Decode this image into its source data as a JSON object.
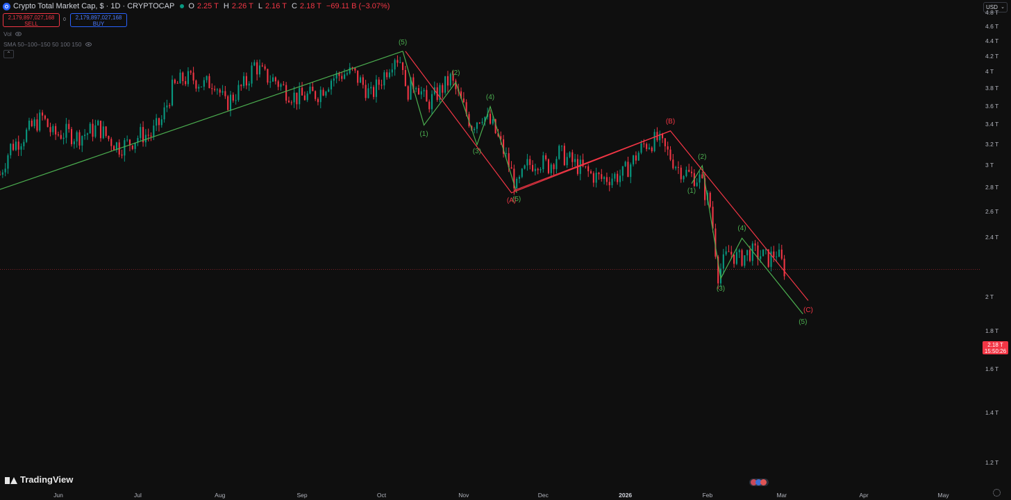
{
  "header": {
    "title": "Crypto Total Market Cap, $ · 1D · CRYPTOCAP",
    "ohlc": [
      {
        "key": "O",
        "value": "2.25 T"
      },
      {
        "key": "H",
        "value": "2.26 T"
      },
      {
        "key": "L",
        "value": "2.16 T"
      },
      {
        "key": "C",
        "value": "2.18 T"
      }
    ],
    "change": "−69.11 B (−3.07%)",
    "sell_price": "2,179,897,027,168",
    "sell_label": "SELL",
    "buy_price": "2,179,897,027,168",
    "buy_label": "BUY",
    "spread": "0"
  },
  "indicators": {
    "vol_label": "Vol",
    "sma_label": "SMA 50–100–150 50 100 150"
  },
  "currency": "USD",
  "y_axis": [
    "4.8 T",
    "4.6 T",
    "4.4 T",
    "4.2 T",
    "4 T",
    "3.8 T",
    "3.6 T",
    "3.4 T",
    "3.2 T",
    "3 T",
    "2.8 T",
    "2.6 T",
    "2.4 T",
    "2 T",
    "1.8 T",
    "1.6 T",
    "1.4 T",
    "1.2 T"
  ],
  "x_axis": [
    "Jun",
    "Jul",
    "Aug",
    "Sep",
    "Oct",
    "Nov",
    "Dec",
    "2026",
    "Feb",
    "Mar",
    "Apr",
    "May"
  ],
  "current_price": {
    "value": "2.18 T",
    "countdown": "15:50:26"
  },
  "brand": "TradingView",
  "colors": {
    "up": "#089981",
    "down": "#f23645",
    "wave_green": "#4caf50",
    "wave_red": "#f23645",
    "background": "#0f0f0f"
  },
  "chart_data": {
    "type": "candlestick",
    "price_scale": "log",
    "ylim": [
      1.12,
      5.0
    ],
    "x_range": [
      "2025-05-10",
      "2026-05-15"
    ],
    "series": {
      "close_path": [
        [
          "2025-05-10",
          2.92
        ],
        [
          "2025-05-14",
          3.18
        ],
        [
          "2025-05-18",
          3.26
        ],
        [
          "2025-05-22",
          3.38
        ],
        [
          "2025-05-26",
          3.48
        ],
        [
          "2025-05-30",
          3.3
        ],
        [
          "2025-06-04",
          3.32
        ],
        [
          "2025-06-08",
          3.28
        ],
        [
          "2025-06-12",
          3.32
        ],
        [
          "2025-06-16",
          3.38
        ],
        [
          "2025-06-20",
          3.26
        ],
        [
          "2025-06-24",
          3.18
        ],
        [
          "2025-06-28",
          3.22
        ],
        [
          "2025-07-02",
          3.3
        ],
        [
          "2025-07-06",
          3.3
        ],
        [
          "2025-07-10",
          3.45
        ],
        [
          "2025-07-14",
          3.8
        ],
        [
          "2025-07-18",
          3.92
        ],
        [
          "2025-07-22",
          3.92
        ],
        [
          "2025-07-26",
          3.85
        ],
        [
          "2025-07-30",
          3.9
        ],
        [
          "2025-08-03",
          3.62
        ],
        [
          "2025-08-07",
          3.75
        ],
        [
          "2025-08-11",
          3.88
        ],
        [
          "2025-08-14",
          4.1
        ],
        [
          "2025-08-18",
          3.95
        ],
        [
          "2025-08-22",
          3.9
        ],
        [
          "2025-08-26",
          3.78
        ],
        [
          "2025-08-30",
          3.7
        ],
        [
          "2025-09-03",
          3.72
        ],
        [
          "2025-09-07",
          3.75
        ],
        [
          "2025-09-12",
          3.92
        ],
        [
          "2025-09-16",
          3.98
        ],
        [
          "2025-09-20",
          4.0
        ],
        [
          "2025-09-24",
          3.85
        ],
        [
          "2025-09-27",
          3.72
        ],
        [
          "2025-10-01",
          3.92
        ],
        [
          "2025-10-04",
          4.1
        ],
        [
          "2025-10-06",
          4.22
        ],
        [
          "2025-10-09",
          4.12
        ],
        [
          "2025-10-10",
          3.75
        ],
        [
          "2025-10-14",
          3.9
        ],
        [
          "2025-10-18",
          3.62
        ],
        [
          "2025-10-23",
          3.78
        ],
        [
          "2025-10-27",
          3.92
        ],
        [
          "2025-10-31",
          3.65
        ],
        [
          "2025-11-04",
          3.4
        ],
        [
          "2025-11-08",
          3.52
        ],
        [
          "2025-11-12",
          3.38
        ],
        [
          "2025-11-16",
          3.14
        ],
        [
          "2025-11-21",
          2.8
        ],
        [
          "2025-11-25",
          3.0
        ],
        [
          "2025-11-29",
          3.05
        ],
        [
          "2025-12-03",
          3.0
        ],
        [
          "2025-12-07",
          3.12
        ],
        [
          "2025-12-11",
          3.05
        ],
        [
          "2025-12-15",
          2.98
        ],
        [
          "2025-12-19",
          2.92
        ],
        [
          "2025-12-23",
          2.88
        ],
        [
          "2025-12-27",
          2.9
        ],
        [
          "2025-12-31",
          2.92
        ],
        [
          "2026-01-04",
          3.05
        ],
        [
          "2026-01-08",
          3.2
        ],
        [
          "2026-01-13",
          3.25
        ],
        [
          "2026-01-17",
          3.12
        ],
        [
          "2026-01-21",
          2.98
        ],
        [
          "2026-01-25",
          2.92
        ],
        [
          "2026-01-29",
          2.88
        ],
        [
          "2026-02-02",
          2.65
        ],
        [
          "2026-02-05",
          2.15
        ],
        [
          "2026-02-09",
          2.3
        ],
        [
          "2026-02-13",
          2.25
        ],
        [
          "2026-02-17",
          2.3
        ],
        [
          "2026-02-21",
          2.28
        ],
        [
          "2026-02-24",
          2.25
        ],
        [
          "2026-02-27",
          2.3
        ],
        [
          "2026-03-02",
          2.18
        ]
      ]
    },
    "drawings": {
      "trendline_green": [
        [
          "2025-04-01",
          2.5
        ],
        [
          "2025-10-09",
          4.27
        ]
      ],
      "wave_green_1": [
        [
          "2025-10-09",
          4.27
        ],
        [
          "2025-10-17",
          3.4
        ],
        [
          "2025-10-29",
          3.88
        ],
        [
          "2025-11-06",
          3.2
        ],
        [
          "2025-11-11",
          3.6
        ],
        [
          "2025-11-21",
          2.76
        ]
      ],
      "wave_green_2": [
        [
          "2026-01-26",
          2.84
        ],
        [
          "2026-01-30",
          3.0
        ],
        [
          "2026-02-06",
          2.12
        ],
        [
          "2026-02-14",
          2.4
        ],
        [
          "2026-03-09",
          1.9
        ]
      ],
      "wave_red_1": [
        [
          "2025-10-10",
          4.27
        ],
        [
          "2025-11-19",
          2.76
        ],
        [
          "2026-01-18",
          3.34
        ],
        [
          "2026-03-11",
          1.98
        ]
      ],
      "wave_red_channel": [
        [
          "2025-11-20",
          2.78
        ],
        [
          "2026-01-18",
          3.34
        ]
      ]
    },
    "labels": {
      "green": [
        {
          "text": "(5)",
          "x": "2025-10-09",
          "y": 4.38
        },
        {
          "text": "(1)",
          "x": "2025-10-17",
          "y": 3.3
        },
        {
          "text": "(2)",
          "x": "2025-10-29",
          "y": 3.99
        },
        {
          "text": "(3)",
          "x": "2025-11-06",
          "y": 3.13
        },
        {
          "text": "(4)",
          "x": "2025-11-11",
          "y": 3.7
        },
        {
          "text": "(5)",
          "x": "2025-11-21",
          "y": 2.7
        },
        {
          "text": "(1)",
          "x": "2026-01-26",
          "y": 2.77
        },
        {
          "text": "(2)",
          "x": "2026-01-30",
          "y": 3.08
        },
        {
          "text": "(3)",
          "x": "2026-02-06",
          "y": 2.05
        },
        {
          "text": "(4)",
          "x": "2026-02-14",
          "y": 2.47
        },
        {
          "text": "(5)",
          "x": "2026-03-09",
          "y": 1.85
        }
      ],
      "red": [
        {
          "text": "(A)",
          "x": "2025-11-19",
          "y": 2.69
        },
        {
          "text": "(B)",
          "x": "2026-01-18",
          "y": 3.43
        },
        {
          "text": "(C)",
          "x": "2026-03-11",
          "y": 1.92
        }
      ]
    },
    "current_price_line": 2.18
  }
}
